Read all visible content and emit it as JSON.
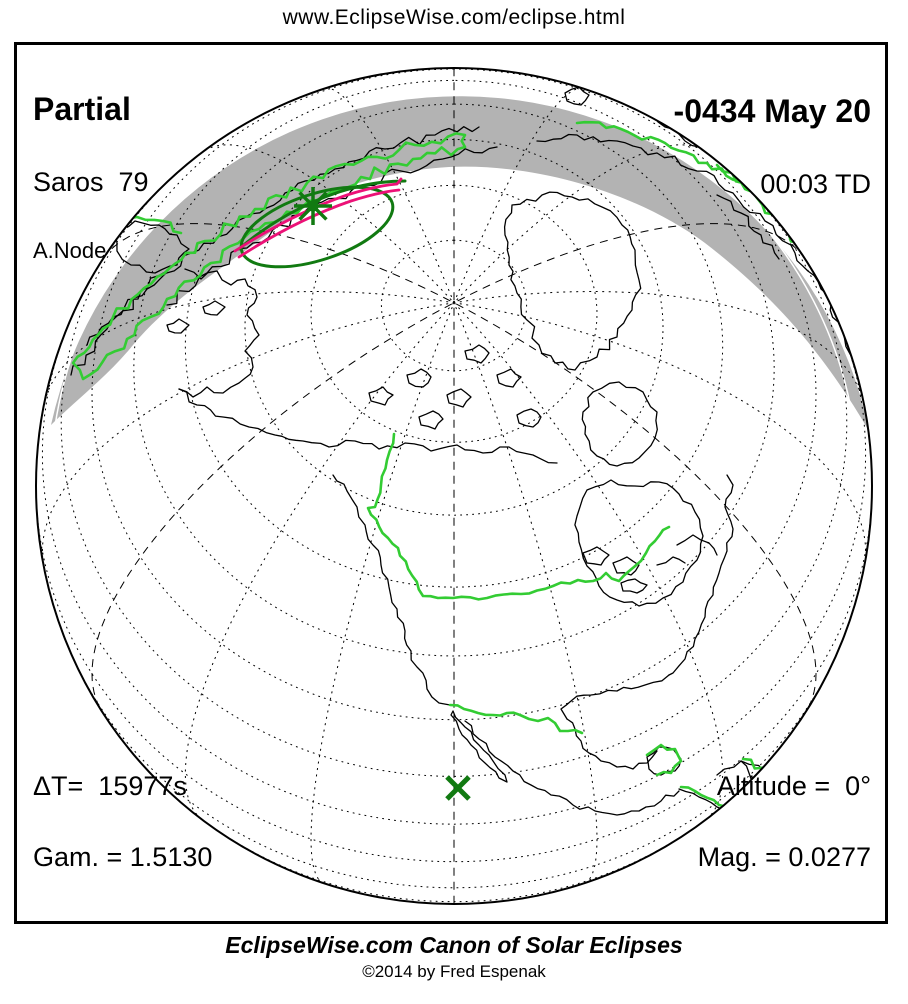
{
  "header": {
    "url": "www.EclipseWise.com/eclipse.html"
  },
  "eclipse": {
    "type": "Partial",
    "saros": "Saros  79",
    "node": "A.Node",
    "date": "-0434 May 20",
    "time": "00:03 TD",
    "delta_t": "ΔT=  15977s",
    "gamma": "Gam. = 1.5130",
    "altitude": "Altitude =  0°",
    "magnitude": "Mag. = 0.0277"
  },
  "footer": {
    "title": "EclipseWise.com Canon of Solar Eclipses",
    "copyright": "©2014 by Fred Espenak"
  },
  "colors": {
    "background": "#FFFFFF",
    "land_outline": "#000000",
    "shadow_gray": "#B3B3B3",
    "border_green": "#33CC33",
    "eclipse_dark_green": "#117A11",
    "path_magenta": "#EC1177",
    "grid": "#000000"
  },
  "map": {
    "projection": "orthographic",
    "markers": {
      "greatest_eclipse": "star-asterisk",
      "sub_solar_point": "x-cross"
    },
    "legend": {
      "shadow_region": "gray shading (eclipse at sunrise/sunset zone)",
      "political_borders": "bright green",
      "penumbra_outline": "dark green ellipse",
      "path_limits": "magenta lines"
    }
  }
}
